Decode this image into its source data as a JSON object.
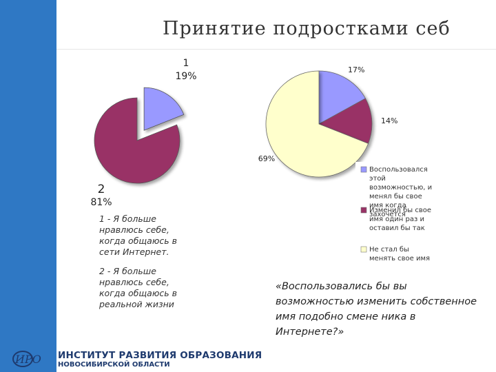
{
  "title": "Принятие подростками себ",
  "chart_data": [
    {
      "type": "pie",
      "slices": [
        {
          "name": "1",
          "value": 19,
          "label_pct": "19%",
          "color": "#9999ff",
          "exploded": true
        },
        {
          "name": "2",
          "value": 81,
          "label_pct": "81%",
          "color": "#993366",
          "exploded": false
        }
      ]
    },
    {
      "type": "pie",
      "slices": [
        {
          "name": "Воспользовался этой возможностью, и менял бы свое имя когда захочется",
          "value": 17,
          "label": "17%",
          "color": "#9999ff"
        },
        {
          "name": "Изменил бы свое имя один раз и оставил бы так",
          "value": 14,
          "label": "14%",
          "color": "#993366"
        },
        {
          "name": "Не стал бы менять свое имя",
          "value": 69,
          "label": "69%",
          "color": "#ffffcc"
        }
      ],
      "legend_position": "right-bottom"
    }
  ],
  "notes": {
    "note1": "1 - Я больше нравлюсь себе, когда общаюсь в сети Интернет.",
    "note2": "2 - Я больше нравлюсь себе, когда общаюсь в реальной жизни"
  },
  "question": "«Воспользовались бы вы возможностью изменить собственное имя подобно смене ника в Интернете?»",
  "footer": {
    "logo_text": "ИРО",
    "line1": "ИНСТИТУТ РАЗВИТИЯ ОБРАЗОВАНИЯ",
    "line2": "НОВОСИБИРСКОЙ ОБЛАСТИ",
    "color": "#1e3a6e"
  }
}
